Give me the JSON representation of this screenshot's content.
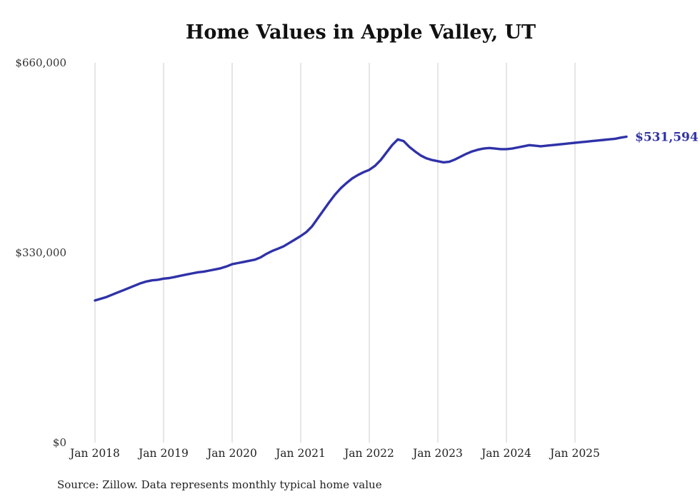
{
  "chart": {
    "title": "Home Values in Apple Valley, UT",
    "end_label": "$531,594",
    "source": "Source: Zillow. Data represents monthly typical home value",
    "colors": {
      "line": "#2f32a8",
      "grid": "#cccccc",
      "title_text": "#111111",
      "axis_text": "#333333"
    }
  },
  "chart_data": {
    "type": "line",
    "title": "Home Values in Apple Valley, UT",
    "series_name": "Monthly typical home value",
    "x_start": "Jan 2018",
    "x_frequency": "monthly",
    "x_end": "Oct 2025",
    "values": [
      247000,
      250000,
      253000,
      257000,
      261000,
      265000,
      269000,
      273000,
      277000,
      280000,
      282000,
      283000,
      285000,
      286000,
      288000,
      290000,
      292000,
      294000,
      296000,
      297000,
      299000,
      301000,
      303000,
      306000,
      310000,
      312000,
      314000,
      316000,
      318000,
      322000,
      328000,
      333000,
      337000,
      341000,
      347000,
      353000,
      359000,
      366000,
      376000,
      390000,
      404000,
      418000,
      431000,
      442000,
      451000,
      459000,
      465000,
      470000,
      474000,
      481000,
      491000,
      504000,
      517000,
      527000,
      524000,
      514000,
      506000,
      499000,
      494000,
      491000,
      489000,
      487000,
      488000,
      492000,
      497000,
      502000,
      506000,
      509000,
      511000,
      512000,
      511000,
      510000,
      510000,
      511000,
      513000,
      515000,
      517000,
      516000,
      515000,
      516000,
      517000,
      518000,
      519000,
      520000,
      521000,
      522000,
      523000,
      524000,
      525000,
      526000,
      527000,
      528000,
      530000,
      531594
    ],
    "final_value": 531594,
    "annotation": {
      "text": "$531,594",
      "value": 531594
    },
    "ylim": [
      0,
      660000
    ],
    "yticks": [
      0,
      330000,
      660000
    ],
    "ytick_labels": [
      "$0",
      "$330,000",
      "$660,000"
    ],
    "xtick_labels": [
      "Jan 2018",
      "Jan 2019",
      "Jan 2020",
      "Jan 2021",
      "Jan 2022",
      "Jan 2023",
      "Jan 2024",
      "Jan 2025"
    ],
    "grid": "vertical-only",
    "legend": "none",
    "source": "Source: Zillow. Data represents monthly typical home value"
  }
}
